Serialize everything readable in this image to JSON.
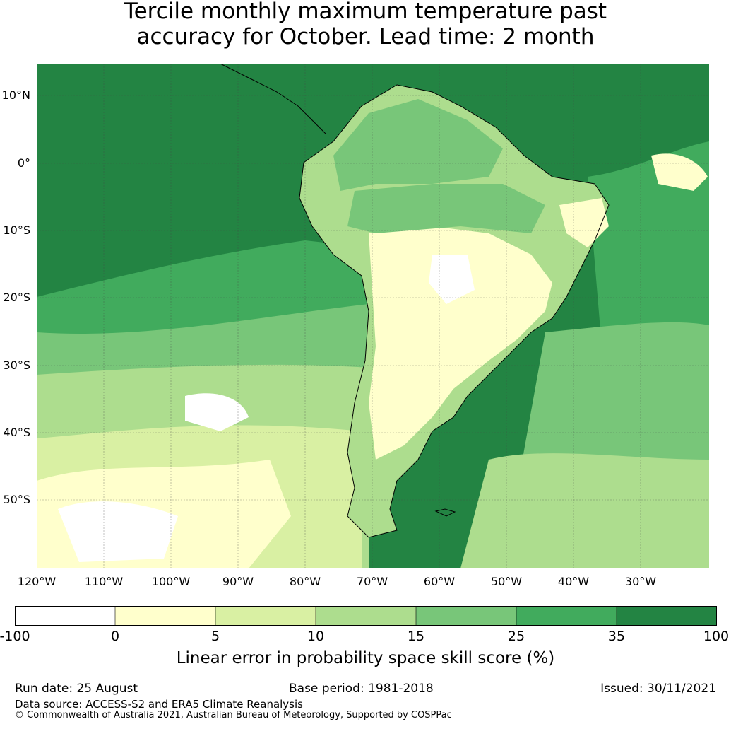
{
  "title": {
    "line1": "Tercile monthly maximum temperature past",
    "line2": "accuracy for October. Lead time: 2 month"
  },
  "map": {
    "lat_labels": [
      "10°N",
      "0°",
      "10°S",
      "20°S",
      "30°S",
      "40°S",
      "50°S"
    ],
    "lon_labels": [
      "120°W",
      "110°W",
      "100°W",
      "90°W",
      "80°W",
      "70°W",
      "60°W",
      "50°W",
      "40°W",
      "30°W"
    ],
    "colors": {
      "ocean_strong": "#238443",
      "land_low": "#ffffcc",
      "bg_white": "#ffffff"
    }
  },
  "colorbar": {
    "ticks": [
      "-100",
      "0",
      "5",
      "10",
      "15",
      "25",
      "35",
      "100"
    ],
    "colors": [
      "#ffffff",
      "#ffffcc",
      "#d9f0a3",
      "#addd8e",
      "#78c679",
      "#41ab5d",
      "#238443"
    ],
    "label": "Linear error in probability space skill score (%)"
  },
  "footer": {
    "run_date": "Run date: 25 August",
    "base_period": "Base period: 1981-2018",
    "issued": "Issued: 30/11/2021",
    "data_source": "Data source: ACCESS-S2 and ERA5 Climate Reanalysis",
    "copyright": "© Commonwealth of Australia 2021, Australian Bureau of Meteorology, Supported by COSPPac"
  }
}
